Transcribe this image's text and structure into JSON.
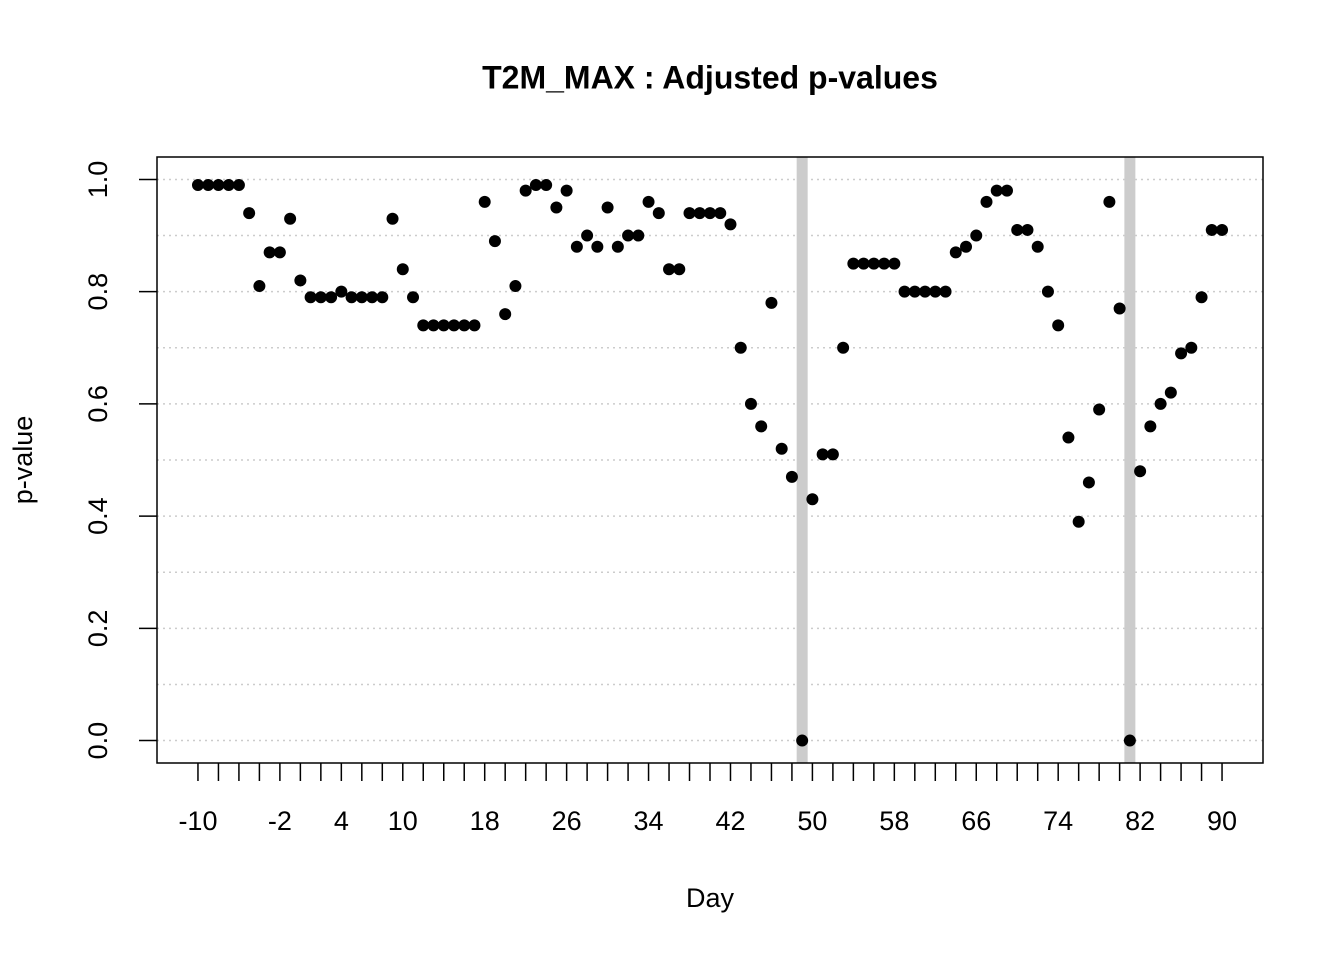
{
  "chart_data": {
    "type": "scatter",
    "title": "T2M_MAX : Adjusted p-values",
    "x_label": "Day",
    "y_label": "p-value",
    "x": [
      -10,
      -9,
      -8,
      -7,
      -6,
      -5,
      -4,
      -3,
      -2,
      -1,
      0,
      1,
      2,
      3,
      4,
      5,
      6,
      7,
      8,
      9,
      10,
      11,
      12,
      13,
      14,
      15,
      16,
      17,
      18,
      19,
      20,
      21,
      22,
      23,
      24,
      25,
      26,
      27,
      28,
      29,
      30,
      31,
      32,
      33,
      34,
      35,
      36,
      37,
      38,
      39,
      40,
      41,
      42,
      43,
      44,
      45,
      46,
      47,
      48,
      49,
      50,
      51,
      52,
      53,
      54,
      55,
      56,
      57,
      58,
      59,
      60,
      61,
      62,
      63,
      64,
      65,
      66,
      67,
      68,
      69,
      70,
      71,
      72,
      73,
      74,
      75,
      76,
      77,
      78,
      79,
      80,
      81,
      82,
      83,
      84,
      85,
      86,
      87,
      88,
      89,
      90
    ],
    "values": [
      0.99,
      0.99,
      0.99,
      0.99,
      0.99,
      0.94,
      0.81,
      0.87,
      0.87,
      0.93,
      0.82,
      0.79,
      0.79,
      0.79,
      0.8,
      0.79,
      0.79,
      0.79,
      0.79,
      0.93,
      0.84,
      0.79,
      0.74,
      0.74,
      0.74,
      0.74,
      0.74,
      0.74,
      0.96,
      0.89,
      0.76,
      0.81,
      0.98,
      0.99,
      0.99,
      0.95,
      0.98,
      0.88,
      0.9,
      0.88,
      0.95,
      0.88,
      0.9,
      0.9,
      0.96,
      0.94,
      0.84,
      0.84,
      0.94,
      0.94,
      0.94,
      0.94,
      0.92,
      0.7,
      0.6,
      0.56,
      0.78,
      0.52,
      0.47,
      0,
      0.43,
      0.51,
      0.51,
      0.7,
      0.85,
      0.85,
      0.85,
      0.85,
      0.85,
      0.8,
      0.8,
      0.8,
      0.8,
      0.8,
      0.87,
      0.88,
      0.9,
      0.96,
      0.98,
      0.98,
      0.91,
      0.91,
      0.88,
      0.8,
      0.74,
      0.54,
      0.39,
      0.46,
      0.59,
      0.96,
      0.77,
      0,
      0.48,
      0.56,
      0.6,
      0.62,
      0.69,
      0.7,
      0.79,
      0.91,
      0.91
    ],
    "color": "#000000",
    "vlines": [
      49,
      81
    ],
    "vline_color": "#cccccc",
    "xlim": [
      -14,
      94
    ],
    "ylim": [
      -0.04,
      1.04
    ],
    "xticks": [
      -10,
      -2,
      4,
      10,
      18,
      26,
      34,
      42,
      50,
      58,
      66,
      74,
      82,
      90
    ],
    "yticks": [
      {
        "value": 0,
        "label": "0.0"
      },
      {
        "value": 0.2,
        "label": "0.2"
      },
      {
        "value": 0.4,
        "label": "0.4"
      },
      {
        "value": 0.6,
        "label": "0.6"
      },
      {
        "value": 0.8,
        "label": "0.8"
      },
      {
        "value": 1,
        "label": "1.0"
      }
    ],
    "grid_lines": [
      0,
      0.1,
      0.2,
      0.3,
      0.4,
      0.5,
      0.6,
      0.7,
      0.8,
      0.9,
      1
    ],
    "grid": true
  }
}
